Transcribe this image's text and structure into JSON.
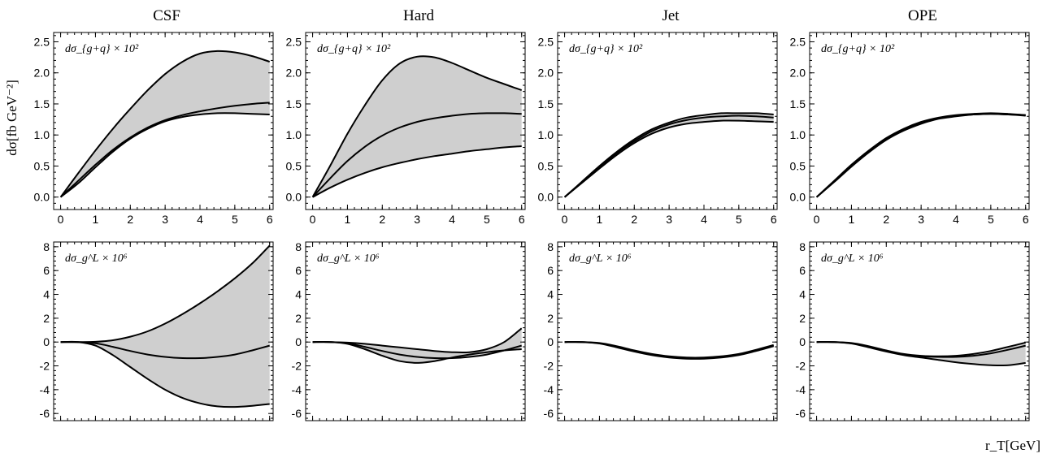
{
  "figure": {
    "y_axis_label": "dσ[fb GeV⁻²]",
    "x_axis_label": "r_T[GeV]",
    "column_titles": [
      "CSF",
      "Hard",
      "Jet",
      "OPE"
    ],
    "row_labels": [
      "dσ_{g+q} × 10²",
      "dσ_g^L × 10⁶"
    ]
  },
  "chart_data": [
    {
      "type": "area",
      "row": 0,
      "col": 0,
      "title": "CSF",
      "panel_label": "dσ_{g+q} × 10²",
      "xlim": [
        -0.2,
        6.1
      ],
      "ylim": [
        -0.2,
        2.65
      ],
      "xticks": [
        0,
        1,
        2,
        3,
        4,
        5,
        6
      ],
      "yticks": [
        0.0,
        0.5,
        1.0,
        1.5,
        2.0,
        2.5
      ],
      "xtick_labels": [
        "0",
        "1",
        "2",
        "3",
        "4",
        "5",
        "6"
      ],
      "ytick_labels": [
        "0.0",
        "0.5",
        "1.0",
        "1.5",
        "2.0",
        "2.5"
      ],
      "series": [
        {
          "x": [
            0,
            0.5,
            1,
            1.5,
            2,
            2.5,
            3,
            3.5,
            4,
            4.5,
            5,
            5.5,
            6
          ],
          "y": [
            0,
            0.38,
            0.75,
            1.1,
            1.42,
            1.72,
            1.98,
            2.18,
            2.31,
            2.35,
            2.33,
            2.27,
            2.18
          ]
        },
        {
          "x": [
            0,
            0.5,
            1,
            1.5,
            2,
            2.5,
            3,
            3.5,
            4,
            4.5,
            5,
            5.5,
            6
          ],
          "y": [
            0,
            0.26,
            0.52,
            0.76,
            0.96,
            1.12,
            1.24,
            1.32,
            1.38,
            1.43,
            1.47,
            1.5,
            1.52
          ]
        },
        {
          "x": [
            0,
            0.5,
            1,
            1.5,
            2,
            2.5,
            3,
            3.5,
            4,
            4.5,
            5,
            5.5,
            6
          ],
          "y": [
            0,
            0.22,
            0.48,
            0.73,
            0.94,
            1.1,
            1.22,
            1.29,
            1.33,
            1.35,
            1.35,
            1.34,
            1.33
          ]
        }
      ]
    },
    {
      "type": "area",
      "row": 0,
      "col": 1,
      "title": "Hard",
      "panel_label": "dσ_{g+q} × 10²",
      "xlim": [
        -0.2,
        6.1
      ],
      "ylim": [
        -0.2,
        2.65
      ],
      "xticks": [
        0,
        1,
        2,
        3,
        4,
        5,
        6
      ],
      "yticks": [
        0.0,
        0.5,
        1.0,
        1.5,
        2.0,
        2.5
      ],
      "xtick_labels": [
        "0",
        "1",
        "2",
        "3",
        "4",
        "5",
        "6"
      ],
      "ytick_labels": [
        "0.0",
        "0.5",
        "1.0",
        "1.5",
        "2.0",
        "2.5"
      ],
      "series": [
        {
          "x": [
            0,
            0.5,
            1,
            1.5,
            2,
            2.5,
            3,
            3.5,
            4,
            4.5,
            5,
            5.5,
            6
          ],
          "y": [
            0,
            0.5,
            1.02,
            1.48,
            1.88,
            2.15,
            2.26,
            2.25,
            2.16,
            2.04,
            1.92,
            1.82,
            1.72
          ]
        },
        {
          "x": [
            0,
            0.5,
            1,
            1.5,
            2,
            2.5,
            3,
            3.5,
            4,
            4.5,
            5,
            5.5,
            6
          ],
          "y": [
            0,
            0.3,
            0.58,
            0.81,
            0.99,
            1.12,
            1.21,
            1.27,
            1.31,
            1.34,
            1.35,
            1.35,
            1.34
          ]
        },
        {
          "x": [
            0,
            0.5,
            1,
            1.5,
            2,
            2.5,
            3,
            3.5,
            4,
            4.5,
            5,
            5.5,
            6
          ],
          "y": [
            0,
            0.15,
            0.28,
            0.39,
            0.48,
            0.55,
            0.61,
            0.66,
            0.7,
            0.74,
            0.77,
            0.8,
            0.82
          ]
        }
      ]
    },
    {
      "type": "area",
      "row": 0,
      "col": 2,
      "title": "Jet",
      "panel_label": "dσ_{g+q} × 10²",
      "xlim": [
        -0.2,
        6.1
      ],
      "ylim": [
        -0.2,
        2.65
      ],
      "xticks": [
        0,
        1,
        2,
        3,
        4,
        5,
        6
      ],
      "yticks": [
        0.0,
        0.5,
        1.0,
        1.5,
        2.0,
        2.5
      ],
      "xtick_labels": [
        "0",
        "1",
        "2",
        "3",
        "4",
        "5",
        "6"
      ],
      "ytick_labels": [
        "0.0",
        "0.5",
        "1.0",
        "1.5",
        "2.0",
        "2.5"
      ],
      "series": [
        {
          "x": [
            0,
            0.5,
            1,
            1.5,
            2,
            2.5,
            3,
            3.5,
            4,
            4.5,
            5,
            5.5,
            6
          ],
          "y": [
            0,
            0.25,
            0.5,
            0.73,
            0.93,
            1.09,
            1.2,
            1.28,
            1.32,
            1.35,
            1.35,
            1.35,
            1.33
          ]
        },
        {
          "x": [
            0,
            0.5,
            1,
            1.5,
            2,
            2.5,
            3,
            3.5,
            4,
            4.5,
            5,
            5.5,
            6
          ],
          "y": [
            0,
            0.24,
            0.48,
            0.71,
            0.9,
            1.06,
            1.17,
            1.24,
            1.28,
            1.3,
            1.31,
            1.3,
            1.28
          ]
        },
        {
          "x": [
            0,
            0.5,
            1,
            1.5,
            2,
            2.5,
            3,
            3.5,
            4,
            4.5,
            5,
            5.5,
            6
          ],
          "y": [
            0,
            0.23,
            0.46,
            0.68,
            0.87,
            1.02,
            1.12,
            1.18,
            1.21,
            1.23,
            1.23,
            1.22,
            1.21
          ]
        }
      ]
    },
    {
      "type": "area",
      "row": 0,
      "col": 3,
      "title": "OPE",
      "panel_label": "dσ_{g+q} × 10²",
      "xlim": [
        -0.2,
        6.1
      ],
      "ylim": [
        -0.2,
        2.65
      ],
      "xticks": [
        0,
        1,
        2,
        3,
        4,
        5,
        6
      ],
      "yticks": [
        0.0,
        0.5,
        1.0,
        1.5,
        2.0,
        2.5
      ],
      "xtick_labels": [
        "0",
        "1",
        "2",
        "3",
        "4",
        "5",
        "6"
      ],
      "ytick_labels": [
        "0.0",
        "0.5",
        "1.0",
        "1.5",
        "2.0",
        "2.5"
      ],
      "series": [
        {
          "x": [
            0,
            0.5,
            1,
            1.5,
            2,
            2.5,
            3,
            3.5,
            4,
            4.5,
            5,
            5.5,
            6
          ],
          "y": [
            0,
            0.26,
            0.52,
            0.75,
            0.95,
            1.1,
            1.21,
            1.28,
            1.32,
            1.34,
            1.35,
            1.34,
            1.32
          ]
        },
        {
          "x": [
            0,
            0.5,
            1,
            1.5,
            2,
            2.5,
            3,
            3.5,
            4,
            4.5,
            5,
            5.5,
            6
          ],
          "y": [
            0,
            0.25,
            0.5,
            0.73,
            0.93,
            1.08,
            1.19,
            1.27,
            1.31,
            1.33,
            1.34,
            1.33,
            1.32
          ]
        },
        {
          "x": [
            0,
            0.5,
            1,
            1.5,
            2,
            2.5,
            3,
            3.5,
            4,
            4.5,
            5,
            5.5,
            6
          ],
          "y": [
            0,
            0.24,
            0.49,
            0.72,
            0.92,
            1.07,
            1.18,
            1.26,
            1.3,
            1.33,
            1.34,
            1.33,
            1.31
          ]
        }
      ]
    },
    {
      "type": "area",
      "row": 1,
      "col": 0,
      "title": "CSF",
      "panel_label": "dσ_g^L × 10⁶",
      "xlim": [
        -0.2,
        6.1
      ],
      "ylim": [
        -6.6,
        8.4
      ],
      "xticks": [
        0,
        1,
        2,
        3,
        4,
        5,
        6
      ],
      "yticks": [
        -6,
        -4,
        -2,
        0,
        2,
        4,
        6,
        8
      ],
      "xtick_labels": [],
      "ytick_labels": [
        "-6",
        "-4",
        "-2",
        "0",
        "2",
        "4",
        "6",
        "8"
      ],
      "series": [
        {
          "x": [
            0,
            0.5,
            1,
            1.5,
            2,
            2.5,
            3,
            3.5,
            4,
            4.5,
            5,
            5.5,
            6
          ],
          "y": [
            0,
            0,
            0.02,
            0.15,
            0.45,
            0.9,
            1.55,
            2.35,
            3.25,
            4.25,
            5.35,
            6.6,
            8.1
          ]
        },
        {
          "x": [
            0,
            0.5,
            1,
            1.5,
            2,
            2.5,
            3,
            3.5,
            4,
            4.5,
            5,
            5.5,
            6
          ],
          "y": [
            0,
            0,
            -0.1,
            -0.4,
            -0.75,
            -1.05,
            -1.25,
            -1.35,
            -1.35,
            -1.25,
            -1.05,
            -0.7,
            -0.3
          ]
        },
        {
          "x": [
            0,
            0.5,
            1,
            1.5,
            2,
            2.5,
            3,
            3.5,
            4,
            4.5,
            5,
            5.5,
            6
          ],
          "y": [
            0,
            0,
            -0.3,
            -1.1,
            -2.1,
            -3.1,
            -4.0,
            -4.7,
            -5.15,
            -5.4,
            -5.45,
            -5.35,
            -5.2
          ]
        }
      ]
    },
    {
      "type": "area",
      "row": 1,
      "col": 1,
      "title": "Hard",
      "panel_label": "dσ_g^L × 10⁶",
      "xlim": [
        -0.2,
        6.1
      ],
      "ylim": [
        -6.6,
        8.4
      ],
      "xticks": [
        0,
        1,
        2,
        3,
        4,
        5,
        6
      ],
      "yticks": [
        -6,
        -4,
        -2,
        0,
        2,
        4,
        6,
        8
      ],
      "xtick_labels": [],
      "ytick_labels": [
        "-6",
        "-4",
        "-2",
        "0",
        "2",
        "4",
        "6",
        "8"
      ],
      "series": [
        {
          "x": [
            0,
            0.5,
            1,
            1.5,
            2,
            2.5,
            3,
            3.5,
            4,
            4.5,
            5,
            5.5,
            6
          ],
          "y": [
            0,
            0,
            -0.05,
            -0.15,
            -0.3,
            -0.45,
            -0.6,
            -0.75,
            -0.85,
            -0.85,
            -0.6,
            0.0,
            1.15
          ]
        },
        {
          "x": [
            0,
            0.5,
            1,
            1.5,
            2,
            2.5,
            3,
            3.5,
            4,
            4.5,
            5,
            5.5,
            6
          ],
          "y": [
            0,
            0,
            -0.1,
            -0.4,
            -0.75,
            -1.05,
            -1.25,
            -1.35,
            -1.35,
            -1.25,
            -1.05,
            -0.7,
            -0.3
          ]
        },
        {
          "x": [
            0,
            0.5,
            1,
            1.5,
            2,
            2.5,
            3,
            3.5,
            4,
            4.5,
            5,
            5.5,
            6
          ],
          "y": [
            0,
            0,
            -0.15,
            -0.6,
            -1.15,
            -1.6,
            -1.75,
            -1.6,
            -1.3,
            -1.05,
            -0.85,
            -0.7,
            -0.6
          ]
        }
      ]
    },
    {
      "type": "area",
      "row": 1,
      "col": 2,
      "title": "Jet",
      "panel_label": "dσ_g^L × 10⁶",
      "xlim": [
        -0.2,
        6.1
      ],
      "ylim": [
        -6.6,
        8.4
      ],
      "xticks": [
        0,
        1,
        2,
        3,
        4,
        5,
        6
      ],
      "yticks": [
        -6,
        -4,
        -2,
        0,
        2,
        4,
        6,
        8
      ],
      "xtick_labels": [],
      "ytick_labels": [
        "-6",
        "-4",
        "-2",
        "0",
        "2",
        "4",
        "6",
        "8"
      ],
      "series": [
        {
          "x": [
            0,
            0.5,
            1,
            1.5,
            2,
            2.5,
            3,
            3.5,
            4,
            4.5,
            5,
            5.5,
            6
          ],
          "y": [
            0,
            0,
            -0.08,
            -0.35,
            -0.7,
            -1.0,
            -1.2,
            -1.3,
            -1.3,
            -1.2,
            -1.0,
            -0.65,
            -0.25
          ]
        },
        {
          "x": [
            0,
            0.5,
            1,
            1.5,
            2,
            2.5,
            3,
            3.5,
            4,
            4.5,
            5,
            5.5,
            6
          ],
          "y": [
            0,
            0,
            -0.1,
            -0.4,
            -0.75,
            -1.05,
            -1.25,
            -1.35,
            -1.35,
            -1.25,
            -1.05,
            -0.7,
            -0.3
          ]
        },
        {
          "x": [
            0,
            0.5,
            1,
            1.5,
            2,
            2.5,
            3,
            3.5,
            4,
            4.5,
            5,
            5.5,
            6
          ],
          "y": [
            0,
            0,
            -0.12,
            -0.45,
            -0.8,
            -1.1,
            -1.3,
            -1.4,
            -1.4,
            -1.3,
            -1.1,
            -0.75,
            -0.35
          ]
        }
      ]
    },
    {
      "type": "area",
      "row": 1,
      "col": 3,
      "title": "OPE",
      "panel_label": "dσ_g^L × 10⁶",
      "xlim": [
        -0.2,
        6.1
      ],
      "ylim": [
        -6.6,
        8.4
      ],
      "xticks": [
        0,
        1,
        2,
        3,
        4,
        5,
        6
      ],
      "yticks": [
        -6,
        -4,
        -2,
        0,
        2,
        4,
        6,
        8
      ],
      "xtick_labels": [],
      "ytick_labels": [
        "-6",
        "-4",
        "-2",
        "0",
        "2",
        "4",
        "6",
        "8"
      ],
      "series": [
        {
          "x": [
            0,
            0.5,
            1,
            1.5,
            2,
            2.5,
            3,
            3.5,
            4,
            4.5,
            5,
            5.5,
            6
          ],
          "y": [
            0,
            0,
            -0.08,
            -0.35,
            -0.7,
            -1.0,
            -1.15,
            -1.2,
            -1.15,
            -1.0,
            -0.75,
            -0.4,
            -0.05
          ]
        },
        {
          "x": [
            0,
            0.5,
            1,
            1.5,
            2,
            2.5,
            3,
            3.5,
            4,
            4.5,
            5,
            5.5,
            6
          ],
          "y": [
            0,
            0,
            -0.1,
            -0.4,
            -0.75,
            -1.05,
            -1.2,
            -1.25,
            -1.25,
            -1.15,
            -0.95,
            -0.65,
            -0.3
          ]
        },
        {
          "x": [
            0,
            0.5,
            1,
            1.5,
            2,
            2.5,
            3,
            3.5,
            4,
            4.5,
            5,
            5.5,
            6
          ],
          "y": [
            0,
            0,
            -0.12,
            -0.45,
            -0.8,
            -1.1,
            -1.3,
            -1.5,
            -1.7,
            -1.85,
            -1.95,
            -1.95,
            -1.75
          ]
        }
      ]
    }
  ]
}
